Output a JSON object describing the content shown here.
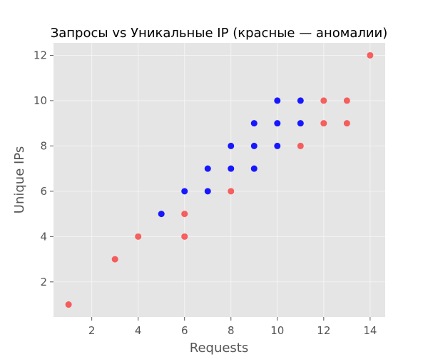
{
  "chart_data": {
    "type": "scatter",
    "title": "Запросы vs Уникальные IP (красные — аномалии)",
    "xlabel": "Requests",
    "ylabel": "Unique IPs",
    "xlim": [
      0.35,
      14.65
    ],
    "ylim": [
      0.45,
      12.55
    ],
    "xticks": [
      2,
      4,
      6,
      8,
      10,
      12,
      14
    ],
    "yticks": [
      2,
      4,
      6,
      8,
      10,
      12
    ],
    "grid": true,
    "colors": {
      "background": "#e5e5e5",
      "grid": "#f4f4f4",
      "tick": "#555555",
      "normal": "#0000ff",
      "anomaly": "#ff0000"
    },
    "series": [
      {
        "category": "normal",
        "color": "#0000ff",
        "opacity": 0.9,
        "points": [
          {
            "x": 5,
            "y": 5
          },
          {
            "x": 6,
            "y": 6
          },
          {
            "x": 7,
            "y": 6
          },
          {
            "x": 7,
            "y": 7
          },
          {
            "x": 8,
            "y": 7
          },
          {
            "x": 8,
            "y": 8
          },
          {
            "x": 9,
            "y": 7
          },
          {
            "x": 9,
            "y": 8
          },
          {
            "x": 9,
            "y": 9
          },
          {
            "x": 10,
            "y": 8
          },
          {
            "x": 10,
            "y": 9
          },
          {
            "x": 10,
            "y": 10
          },
          {
            "x": 11,
            "y": 9
          },
          {
            "x": 11,
            "y": 10
          }
        ]
      },
      {
        "category": "anomaly",
        "color": "#ff0000",
        "opacity": 0.6,
        "points": [
          {
            "x": 1,
            "y": 1
          },
          {
            "x": 3,
            "y": 3
          },
          {
            "x": 4,
            "y": 4
          },
          {
            "x": 6,
            "y": 4
          },
          {
            "x": 6,
            "y": 5
          },
          {
            "x": 8,
            "y": 6
          },
          {
            "x": 11,
            "y": 8
          },
          {
            "x": 12,
            "y": 9
          },
          {
            "x": 12,
            "y": 10
          },
          {
            "x": 13,
            "y": 9
          },
          {
            "x": 13,
            "y": 10
          },
          {
            "x": 14,
            "y": 12
          }
        ]
      }
    ]
  }
}
